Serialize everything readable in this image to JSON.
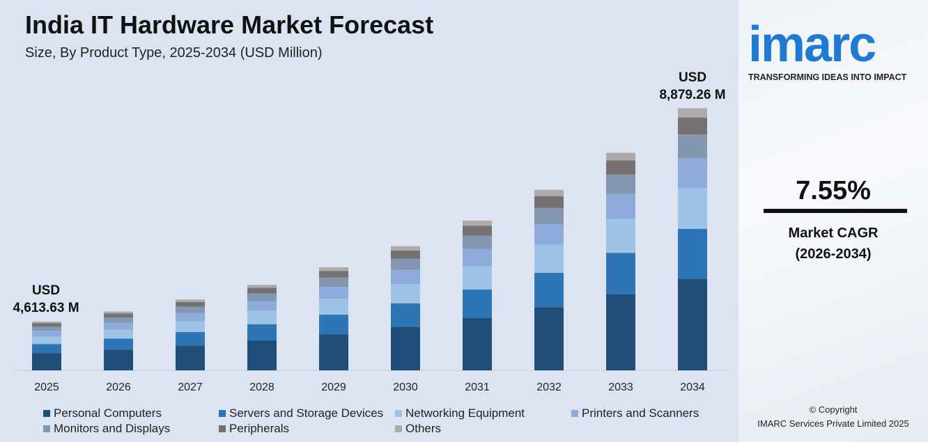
{
  "chart_data": {
    "type": "bar",
    "stacked": true,
    "title": "India IT Hardware Market Forecast",
    "subtitle": "Size, By Product Type, 2025-2034 (USD Million)",
    "categories": [
      "2025",
      "2026",
      "2027",
      "2028",
      "2029",
      "2030",
      "2031",
      "2032",
      "2033",
      "2034"
    ],
    "series": [
      {
        "name": "Personal Computers",
        "color": "#1f4e79",
        "values": [
          1615,
          1737,
          1868,
          2009,
          2161,
          2324,
          2499,
          2688,
          2891,
          3108
        ]
      },
      {
        "name": "Servers and Storage Devices",
        "color": "#2e75b6",
        "values": [
          877,
          943,
          1014,
          1091,
          1173,
          1261,
          1357,
          1459,
          1569,
          1687
        ]
      },
      {
        "name": "Networking Equipment",
        "color": "#9dc3e6",
        "values": [
          715,
          769,
          827,
          890,
          957,
          1029,
          1107,
          1190,
          1280,
          1376
        ]
      },
      {
        "name": "Printers and Scanners",
        "color": "#8faadc",
        "values": [
          531,
          571,
          614,
          660,
          710,
          763,
          821,
          883,
          950,
          1021
        ]
      },
      {
        "name": "Monitors and Displays",
        "color": "#8497b0",
        "values": [
          415,
          447,
          480,
          517,
          556,
          598,
          643,
          691,
          743,
          799
        ]
      },
      {
        "name": "Peripherals",
        "color": "#767171",
        "values": [
          300,
          323,
          347,
          373,
          401,
          432,
          464,
          499,
          537,
          577
        ]
      },
      {
        "name": "Others",
        "color": "#aeaaaa",
        "values": [
          161,
          174,
          187,
          201,
          216,
          232,
          250,
          269,
          289,
          311
        ]
      }
    ],
    "annotations": [
      {
        "category": "2025",
        "line1": "USD",
        "line2": "4,613.63 M"
      },
      {
        "category": "2034",
        "line1": "USD",
        "line2": "8,879.26 M"
      }
    ],
    "legend": "bottom",
    "grid": false
  },
  "brand": {
    "logo": "imarc",
    "tagline": "TRANSFORMING IDEAS INTO IMPACT",
    "cagr": "7.55%",
    "cagr_label": "Market CAGR",
    "cagr_period": "(2026-2034)",
    "copyright": "© Copyright",
    "company": "IMARC Services Private Limited 2025"
  }
}
